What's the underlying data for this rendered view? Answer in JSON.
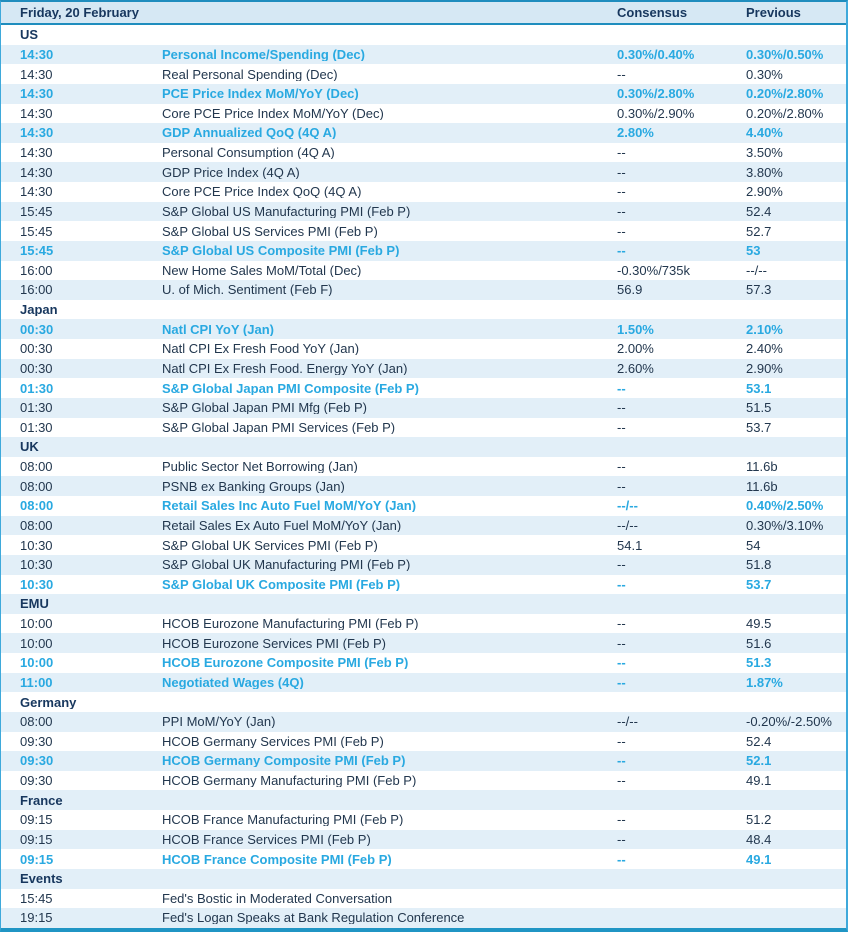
{
  "header": {
    "title": "Friday, 20 February",
    "consensus_label": "Consensus",
    "previous_label": "Previous"
  },
  "colors": {
    "navy_text": "#17375E",
    "body_text": "#22374E",
    "highlight_cyan": "#29A9E1",
    "header_bg": "#D6E8F4",
    "stripe_bg": "#E2EFF8",
    "teal_line": "#1F8DBE",
    "bottom_bar": "#2095C4"
  },
  "rows": [
    {
      "type": "section",
      "label": "US"
    },
    {
      "type": "data",
      "time": "14:30",
      "event": "Personal Income/Spending (Dec)",
      "consensus": "0.30%/0.40%",
      "previous": "0.30%/0.50%",
      "highlight": true
    },
    {
      "type": "data",
      "time": "14:30",
      "event": "Real Personal Spending (Dec)",
      "consensus": "--",
      "previous": "0.30%",
      "highlight": false
    },
    {
      "type": "data",
      "time": "14:30",
      "event": "PCE Price Index MoM/YoY (Dec)",
      "consensus": "0.30%/2.80%",
      "previous": "0.20%/2.80%",
      "highlight": true
    },
    {
      "type": "data",
      "time": "14:30",
      "event": "Core PCE Price Index MoM/YoY (Dec)",
      "consensus": "0.30%/2.90%",
      "previous": "0.20%/2.80%",
      "highlight": false
    },
    {
      "type": "data",
      "time": "14:30",
      "event": "GDP Annualized QoQ (4Q A)",
      "consensus": "2.80%",
      "previous": "4.40%",
      "highlight": true
    },
    {
      "type": "data",
      "time": "14:30",
      "event": "Personal Consumption (4Q A)",
      "consensus": "--",
      "previous": "3.50%",
      "highlight": false
    },
    {
      "type": "data",
      "time": "14:30",
      "event": "GDP Price Index (4Q A)",
      "consensus": "--",
      "previous": "3.80%",
      "highlight": false
    },
    {
      "type": "data",
      "time": "14:30",
      "event": "Core PCE Price Index QoQ (4Q A)",
      "consensus": "--",
      "previous": "2.90%",
      "highlight": false
    },
    {
      "type": "data",
      "time": "15:45",
      "event": "S&P Global US Manufacturing PMI (Feb P)",
      "consensus": "--",
      "previous": "52.4",
      "highlight": false
    },
    {
      "type": "data",
      "time": "15:45",
      "event": "S&P Global US Services PMI (Feb P)",
      "consensus": "--",
      "previous": "52.7",
      "highlight": false
    },
    {
      "type": "data",
      "time": "15:45",
      "event": "S&P Global US Composite PMI (Feb P)",
      "consensus": "--",
      "previous": "53",
      "highlight": true
    },
    {
      "type": "data",
      "time": "16:00",
      "event": "New Home Sales MoM/Total (Dec)",
      "consensus": "-0.30%/735k",
      "previous": "--/--",
      "highlight": false
    },
    {
      "type": "data",
      "time": "16:00",
      "event": "U. of Mich. Sentiment (Feb F)",
      "consensus": "56.9",
      "previous": "57.3",
      "highlight": false
    },
    {
      "type": "section",
      "label": "Japan"
    },
    {
      "type": "data",
      "time": "00:30",
      "event": "Natl CPI YoY (Jan)",
      "consensus": "1.50%",
      "previous": "2.10%",
      "highlight": true
    },
    {
      "type": "data",
      "time": "00:30",
      "event": "Natl CPI Ex Fresh Food YoY (Jan)",
      "consensus": "2.00%",
      "previous": "2.40%",
      "highlight": false
    },
    {
      "type": "data",
      "time": "00:30",
      "event": "Natl CPI Ex Fresh Food. Energy YoY (Jan)",
      "consensus": "2.60%",
      "previous": "2.90%",
      "highlight": false
    },
    {
      "type": "data",
      "time": "01:30",
      "event": "S&P Global Japan PMI Composite (Feb P)",
      "consensus": "--",
      "previous": "53.1",
      "highlight": true
    },
    {
      "type": "data",
      "time": "01:30",
      "event": "S&P Global Japan PMI Mfg (Feb P)",
      "consensus": "--",
      "previous": "51.5",
      "highlight": false
    },
    {
      "type": "data",
      "time": "01:30",
      "event": "S&P Global Japan PMI Services (Feb P)",
      "consensus": "--",
      "previous": "53.7",
      "highlight": false
    },
    {
      "type": "section",
      "label": "UK"
    },
    {
      "type": "data",
      "time": "08:00",
      "event": "Public Sector Net Borrowing (Jan)",
      "consensus": "--",
      "previous": "11.6b",
      "highlight": false
    },
    {
      "type": "data",
      "time": "08:00",
      "event": "PSNB ex Banking Groups (Jan)",
      "consensus": "--",
      "previous": "11.6b",
      "highlight": false
    },
    {
      "type": "data",
      "time": "08:00",
      "event": "Retail Sales Inc Auto Fuel MoM/YoY (Jan)",
      "consensus": "--/--",
      "previous": "0.40%/2.50%",
      "highlight": true
    },
    {
      "type": "data",
      "time": "08:00",
      "event": "Retail Sales Ex Auto Fuel MoM/YoY (Jan)",
      "consensus": "--/--",
      "previous": "0.30%/3.10%",
      "highlight": false
    },
    {
      "type": "data",
      "time": "10:30",
      "event": "S&P Global UK Services PMI (Feb P)",
      "consensus": "54.1",
      "previous": "54",
      "highlight": false
    },
    {
      "type": "data",
      "time": "10:30",
      "event": "S&P Global UK Manufacturing PMI (Feb P)",
      "consensus": "--",
      "previous": "51.8",
      "highlight": false
    },
    {
      "type": "data",
      "time": "10:30",
      "event": "S&P Global UK Composite PMI (Feb P)",
      "consensus": "--",
      "previous": "53.7",
      "highlight": true
    },
    {
      "type": "section",
      "label": "EMU"
    },
    {
      "type": "data",
      "time": "10:00",
      "event": "HCOB Eurozone Manufacturing PMI (Feb P)",
      "consensus": "--",
      "previous": "49.5",
      "highlight": false
    },
    {
      "type": "data",
      "time": "10:00",
      "event": "HCOB Eurozone Services PMI (Feb P)",
      "consensus": "--",
      "previous": "51.6",
      "highlight": false
    },
    {
      "type": "data",
      "time": "10:00",
      "event": "HCOB Eurozone Composite PMI (Feb P)",
      "consensus": "--",
      "previous": "51.3",
      "highlight": true
    },
    {
      "type": "data",
      "time": "11:00",
      "event": "Negotiated Wages (4Q)",
      "consensus": "--",
      "previous": "1.87%",
      "highlight": true
    },
    {
      "type": "section",
      "label": "Germany"
    },
    {
      "type": "data",
      "time": "08:00",
      "event": "PPI MoM/YoY (Jan)",
      "consensus": "--/--",
      "previous": "-0.20%/-2.50%",
      "highlight": false
    },
    {
      "type": "data",
      "time": "09:30",
      "event": "HCOB Germany Services PMI (Feb P)",
      "consensus": "--",
      "previous": "52.4",
      "highlight": false
    },
    {
      "type": "data",
      "time": "09:30",
      "event": "HCOB Germany Composite PMI (Feb P)",
      "consensus": "--",
      "previous": "52.1",
      "highlight": true
    },
    {
      "type": "data",
      "time": "09:30",
      "event": "HCOB Germany Manufacturing PMI (Feb P)",
      "consensus": "--",
      "previous": "49.1",
      "highlight": false
    },
    {
      "type": "section",
      "label": "France"
    },
    {
      "type": "data",
      "time": "09:15",
      "event": "HCOB France Manufacturing PMI (Feb P)",
      "consensus": "--",
      "previous": "51.2",
      "highlight": false
    },
    {
      "type": "data",
      "time": "09:15",
      "event": "HCOB France Services PMI (Feb P)",
      "consensus": "--",
      "previous": "48.4",
      "highlight": false
    },
    {
      "type": "data",
      "time": "09:15",
      "event": "HCOB France Composite PMI (Feb P)",
      "consensus": "--",
      "previous": "49.1",
      "highlight": true
    },
    {
      "type": "section",
      "label": "Events"
    },
    {
      "type": "data",
      "time": "15:45",
      "event": "Fed's Bostic in Moderated Conversation",
      "consensus": "",
      "previous": "",
      "highlight": false
    },
    {
      "type": "data",
      "time": "19:15",
      "event": "Fed's Logan Speaks at Bank Regulation Conference",
      "consensus": "",
      "previous": "",
      "highlight": false
    }
  ]
}
